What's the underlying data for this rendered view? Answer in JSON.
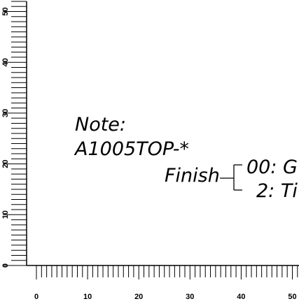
{
  "ruler": {
    "x_labels": [
      "0",
      "10",
      "20",
      "30",
      "40",
      "50"
    ],
    "y_labels": [
      "0",
      "10",
      "20",
      "30",
      "40",
      "50"
    ],
    "x_range": [
      0,
      51
    ],
    "y_range": [
      0,
      52
    ]
  },
  "note": {
    "heading": "Note:",
    "part_number": "A1005TOP-*",
    "finish_label": "Finish",
    "options": [
      "00: G",
      "2: Ti"
    ]
  }
}
